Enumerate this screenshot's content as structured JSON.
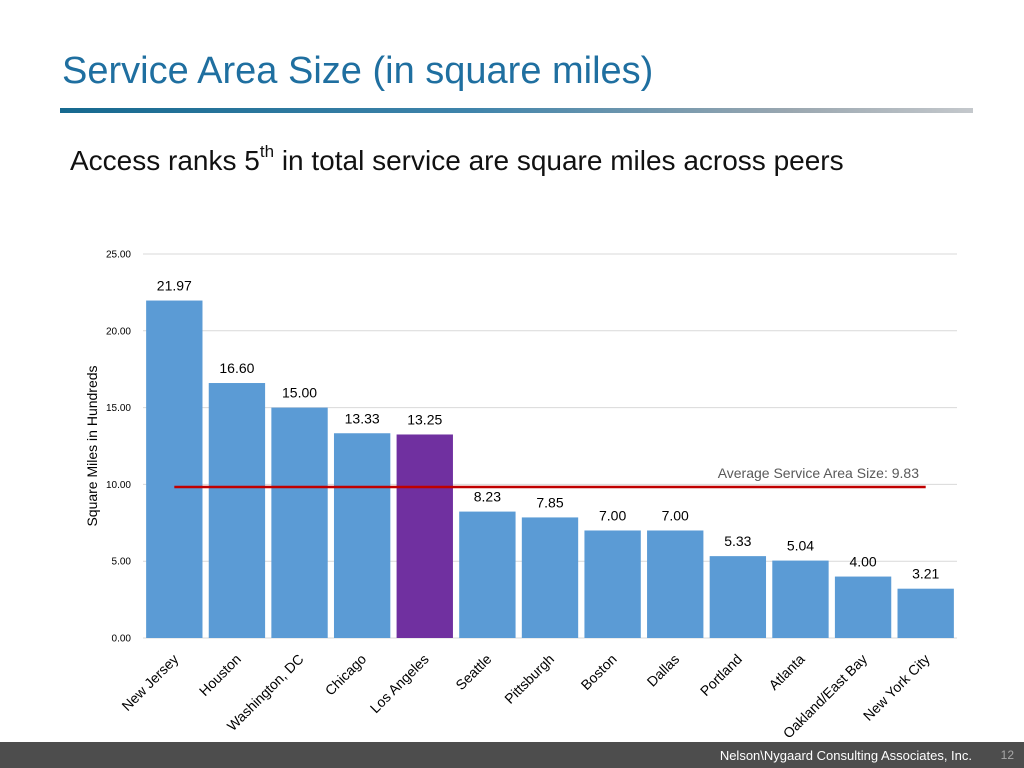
{
  "slide": {
    "title": "Service Area Size (in square miles)",
    "subtitle_before": "Access ranks 5",
    "subtitle_sup": "th",
    "subtitle_after": " in total service are square miles across peers"
  },
  "chart_data": {
    "type": "bar",
    "ylabel": "Square Miles in Hundreds",
    "ylim": [
      0,
      25
    ],
    "yticks": [
      "0.00",
      "5.00",
      "10.00",
      "15.00",
      "20.00",
      "25.00"
    ],
    "grid": true,
    "categories": [
      "New Jersey",
      "Houston",
      "Washington, DC",
      "Chicago",
      "Los Angeles",
      "Seattle",
      "Pittsburgh",
      "Boston",
      "Dallas",
      "Portland",
      "Atlanta",
      "Oakland/East Bay",
      "New York City"
    ],
    "values": [
      21.97,
      16.6,
      15.0,
      13.33,
      13.25,
      8.23,
      7.85,
      7.0,
      7.0,
      5.33,
      5.04,
      4.0,
      3.21
    ],
    "value_labels": [
      "21.97",
      "16.60",
      "15.00",
      "13.33",
      "13.25",
      "8.23",
      "7.85",
      "7.00",
      "7.00",
      "5.33",
      "5.04",
      "4.00",
      "3.21"
    ],
    "highlight_category": "Los Angeles",
    "average": {
      "value": 9.83,
      "label": "Average Service Area Size: 9.83"
    },
    "colors": {
      "bar": "#5b9bd5",
      "highlight": "#7030a0",
      "average_line": "#c00000",
      "grid": "#d9d9d9"
    }
  },
  "footer": {
    "company": "Nelson\\Nygaard Consulting Associates, Inc.",
    "page": "12"
  }
}
